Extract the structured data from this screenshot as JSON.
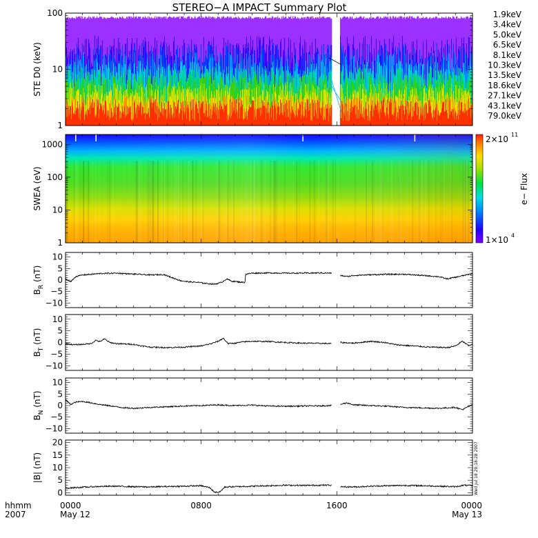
{
  "chart_data": {
    "type": "line",
    "title": "STEREO−A IMPACT Summary Plot",
    "x_axis": {
      "label_line1": "hhmm",
      "label_line2": "2007",
      "ticks": [
        {
          "hour": 0,
          "time": "0000",
          "date": "May 12"
        },
        {
          "hour": 8,
          "time": "0800",
          "date": ""
        },
        {
          "hour": 16,
          "time": "1600",
          "date": ""
        },
        {
          "hour": 24,
          "time": "0000",
          "date": "May 13"
        }
      ],
      "range_hours": [
        0,
        24
      ],
      "data_gap_hours": [
        15.7,
        16.2
      ]
    },
    "panels": [
      {
        "id": "ste",
        "ylabel": "STE D0 (keV)",
        "yscale": "log",
        "ylim": [
          1,
          100
        ],
        "yticks": [
          {
            "v": 1,
            "label": "1"
          },
          {
            "v": 10,
            "label": "10"
          },
          {
            "v": 100,
            "label": "100"
          }
        ],
        "legend_position": "right",
        "series": [
          {
            "name": "1.9keV",
            "color": "#9b30ff",
            "level": 85,
            "spread": 0.2
          },
          {
            "name": "3.4keV",
            "color": "#3f00ff",
            "level": 16,
            "spread": 0.4
          },
          {
            "name": "5.0keV",
            "color": "#0040ff",
            "level": 12,
            "spread": 0.4
          },
          {
            "name": "6.5keV",
            "color": "#0090ff",
            "level": 9,
            "spread": 0.35
          },
          {
            "name": "8.1keV",
            "color": "#00d0d0",
            "level": 7,
            "spread": 0.3
          },
          {
            "name": "10.3keV",
            "color": "#00d070",
            "level": 5.5,
            "spread": 0.3
          },
          {
            "name": "13.5keV",
            "color": "#40d000",
            "level": 4.2,
            "spread": 0.28
          },
          {
            "name": "18.6keV",
            "color": "#a0e000",
            "level": 3.3,
            "spread": 0.25
          },
          {
            "name": "27.1keV",
            "color": "#e8e000",
            "level": 2.6,
            "spread": 0.25
          },
          {
            "name": "43.1keV",
            "color": "#ff9000",
            "level": 2.1,
            "spread": 0.22
          },
          {
            "name": "79.0keV",
            "color": "#ff3000",
            "level": 1.9,
            "spread": 0.2
          }
        ]
      },
      {
        "id": "swea",
        "type": "heatmap",
        "ylabel": "SWEA (eV)",
        "yscale": "log",
        "ylim": [
          1,
          2000
        ],
        "yticks": [
          {
            "v": 1,
            "label": "1"
          },
          {
            "v": 10,
            "label": "10"
          },
          {
            "v": 100,
            "label": "100"
          },
          {
            "v": 1000,
            "label": "1000"
          }
        ],
        "colorbar": {
          "label": "e− Flux",
          "max_base": "2×10",
          "max_exp": "11",
          "min_base": "1×10",
          "min_exp": "4"
        }
      },
      {
        "id": "br",
        "ylabel_main": "B",
        "ylabel_sub": "R",
        "ylabel_unit": " (nT)",
        "ylim": [
          -12,
          12
        ],
        "yticks": [
          {
            "v": -10,
            "label": "−10"
          },
          {
            "v": -5,
            "label": "−5"
          },
          {
            "v": 0,
            "label": "0"
          },
          {
            "v": 5,
            "label": "5"
          },
          {
            "v": 10,
            "label": "10"
          }
        ],
        "points": [
          [
            0,
            0.5
          ],
          [
            0.3,
            -0.8
          ],
          [
            0.6,
            1.5
          ],
          [
            1,
            2.2
          ],
          [
            1.5,
            2.5
          ],
          [
            2,
            2.8
          ],
          [
            3,
            3.0
          ],
          [
            4,
            2.6
          ],
          [
            5,
            2.2
          ],
          [
            5.8,
            2.4
          ],
          [
            6.3,
            1.0
          ],
          [
            6.8,
            -0.3
          ],
          [
            7.3,
            -0.8
          ],
          [
            7.8,
            -1.0
          ],
          [
            8.3,
            -1.5
          ],
          [
            8.8,
            -1.8
          ],
          [
            9.2,
            -1.0
          ],
          [
            9.5,
            0.5
          ],
          [
            9.8,
            -0.5
          ],
          [
            10.2,
            -0.8
          ],
          [
            10.5,
            -1.0
          ],
          [
            10.58,
            -1.0
          ],
          [
            10.62,
            2.5
          ],
          [
            11,
            3.0
          ],
          [
            12,
            3.1
          ],
          [
            13,
            3.0
          ],
          [
            14,
            3.0
          ],
          [
            15,
            3.1
          ],
          [
            15.7,
            3.0
          ],
          [
            16.2,
            2.0
          ],
          [
            16.6,
            1.5
          ],
          [
            17,
            2.0
          ],
          [
            18,
            2.3
          ],
          [
            19,
            2.5
          ],
          [
            20,
            2.5
          ],
          [
            21,
            2.0
          ],
          [
            22,
            1.5
          ],
          [
            22.5,
            0.5
          ],
          [
            23,
            1.2
          ],
          [
            23.5,
            2.0
          ],
          [
            24,
            2.8
          ]
        ]
      },
      {
        "id": "bt",
        "ylabel_main": "B",
        "ylabel_sub": "T",
        "ylabel_unit": " (nT)",
        "ylim": [
          -12,
          12
        ],
        "yticks": [
          {
            "v": -10,
            "label": "−10"
          },
          {
            "v": -5,
            "label": "−5"
          },
          {
            "v": 0,
            "label": "0"
          },
          {
            "v": 5,
            "label": "5"
          },
          {
            "v": 10,
            "label": "10"
          }
        ],
        "points": [
          [
            0,
            -0.5
          ],
          [
            0.5,
            -1.0
          ],
          [
            1,
            -0.8
          ],
          [
            1.5,
            -0.5
          ],
          [
            1.8,
            1.0
          ],
          [
            2,
            0.3
          ],
          [
            2.3,
            1.5
          ],
          [
            2.6,
            0.0
          ],
          [
            3,
            -0.5
          ],
          [
            4,
            -0.8
          ],
          [
            4.5,
            -1.5
          ],
          [
            5,
            -2.0
          ],
          [
            6,
            -2.2
          ],
          [
            7,
            -2.0
          ],
          [
            8,
            -1.5
          ],
          [
            8.6,
            -0.5
          ],
          [
            9.0,
            0.5
          ],
          [
            9.3,
            1.8
          ],
          [
            9.6,
            -0.5
          ],
          [
            10,
            -0.3
          ],
          [
            10.5,
            0.3
          ],
          [
            11,
            0.5
          ],
          [
            12,
            0.4
          ],
          [
            13,
            0.0
          ],
          [
            14,
            -0.3
          ],
          [
            15,
            -0.4
          ],
          [
            15.7,
            -0.5
          ],
          [
            16.2,
            0.0
          ],
          [
            17,
            -0.3
          ],
          [
            18,
            0.5
          ],
          [
            18.8,
            0.0
          ],
          [
            19.5,
            -1.0
          ],
          [
            20.5,
            -1.5
          ],
          [
            21.5,
            -2.0
          ],
          [
            22.5,
            -2.2
          ],
          [
            23,
            -1.5
          ],
          [
            23.4,
            0.5
          ],
          [
            23.8,
            -1.5
          ],
          [
            24,
            -0.5
          ]
        ]
      },
      {
        "id": "bn",
        "ylabel_main": "B",
        "ylabel_sub": "N",
        "ylabel_unit": " (nT)",
        "ylim": [
          -12,
          12
        ],
        "yticks": [
          {
            "v": -10,
            "label": "−10"
          },
          {
            "v": -5,
            "label": "−5"
          },
          {
            "v": 0,
            "label": "0"
          },
          {
            "v": 5,
            "label": "5"
          },
          {
            "v": 10,
            "label": "10"
          }
        ],
        "points": [
          [
            0,
            2.5
          ],
          [
            0.3,
            0.5
          ],
          [
            0.6,
            1.5
          ],
          [
            1,
            1.8
          ],
          [
            1.5,
            1.2
          ],
          [
            2,
            0.5
          ],
          [
            2.5,
            0.0
          ],
          [
            3,
            -0.5
          ],
          [
            3.5,
            -1.0
          ],
          [
            4,
            -1.2
          ],
          [
            5,
            -0.8
          ],
          [
            6,
            -0.5
          ],
          [
            7,
            -0.2
          ],
          [
            8,
            0.0
          ],
          [
            9,
            0.3
          ],
          [
            10,
            0.0
          ],
          [
            11,
            0.2
          ],
          [
            12,
            -0.2
          ],
          [
            13,
            -0.3
          ],
          [
            14,
            -0.2
          ],
          [
            15,
            -0.1
          ],
          [
            15.7,
            0.0
          ],
          [
            16.2,
            0.5
          ],
          [
            16.6,
            1.2
          ],
          [
            17,
            0.3
          ],
          [
            18,
            0.0
          ],
          [
            19,
            -0.3
          ],
          [
            20,
            -0.8
          ],
          [
            21,
            -1.0
          ],
          [
            22,
            -1.2
          ],
          [
            23,
            -0.8
          ],
          [
            23.4,
            -1.8
          ],
          [
            23.8,
            -0.3
          ],
          [
            24,
            0.3
          ]
        ]
      },
      {
        "id": "bmag",
        "ylabel": "|B| (nT)",
        "ylim": [
          -1,
          21
        ],
        "yticks": [
          {
            "v": 0,
            "label": "0"
          },
          {
            "v": 5,
            "label": "5"
          },
          {
            "v": 10,
            "label": "10"
          },
          {
            "v": 15,
            "label": "15"
          },
          {
            "v": 20,
            "label": "20"
          }
        ],
        "side_stamp": "Wed Jul 18 20:18:28 2007",
        "points": [
          [
            0,
            1.8
          ],
          [
            1,
            2.2
          ],
          [
            2,
            2.5
          ],
          [
            3,
            2.6
          ],
          [
            4,
            2.4
          ],
          [
            5,
            2.3
          ],
          [
            6,
            2.5
          ],
          [
            7,
            2.6
          ],
          [
            8,
            2.8
          ],
          [
            8.5,
            2.0
          ],
          [
            8.8,
            0.2
          ],
          [
            9.1,
            0.3
          ],
          [
            9.4,
            2.3
          ],
          [
            10,
            2.4
          ],
          [
            11,
            2.6
          ],
          [
            12,
            2.8
          ],
          [
            13,
            3.0
          ],
          [
            14,
            2.9
          ],
          [
            15,
            3.0
          ],
          [
            15.7,
            3.0
          ],
          [
            16.2,
            2.4
          ],
          [
            17,
            2.3
          ],
          [
            18,
            2.6
          ],
          [
            19,
            2.8
          ],
          [
            20,
            2.9
          ],
          [
            21,
            2.8
          ],
          [
            22,
            2.6
          ],
          [
            23,
            2.4
          ],
          [
            23.5,
            3.0
          ],
          [
            24,
            2.8
          ]
        ]
      }
    ]
  }
}
